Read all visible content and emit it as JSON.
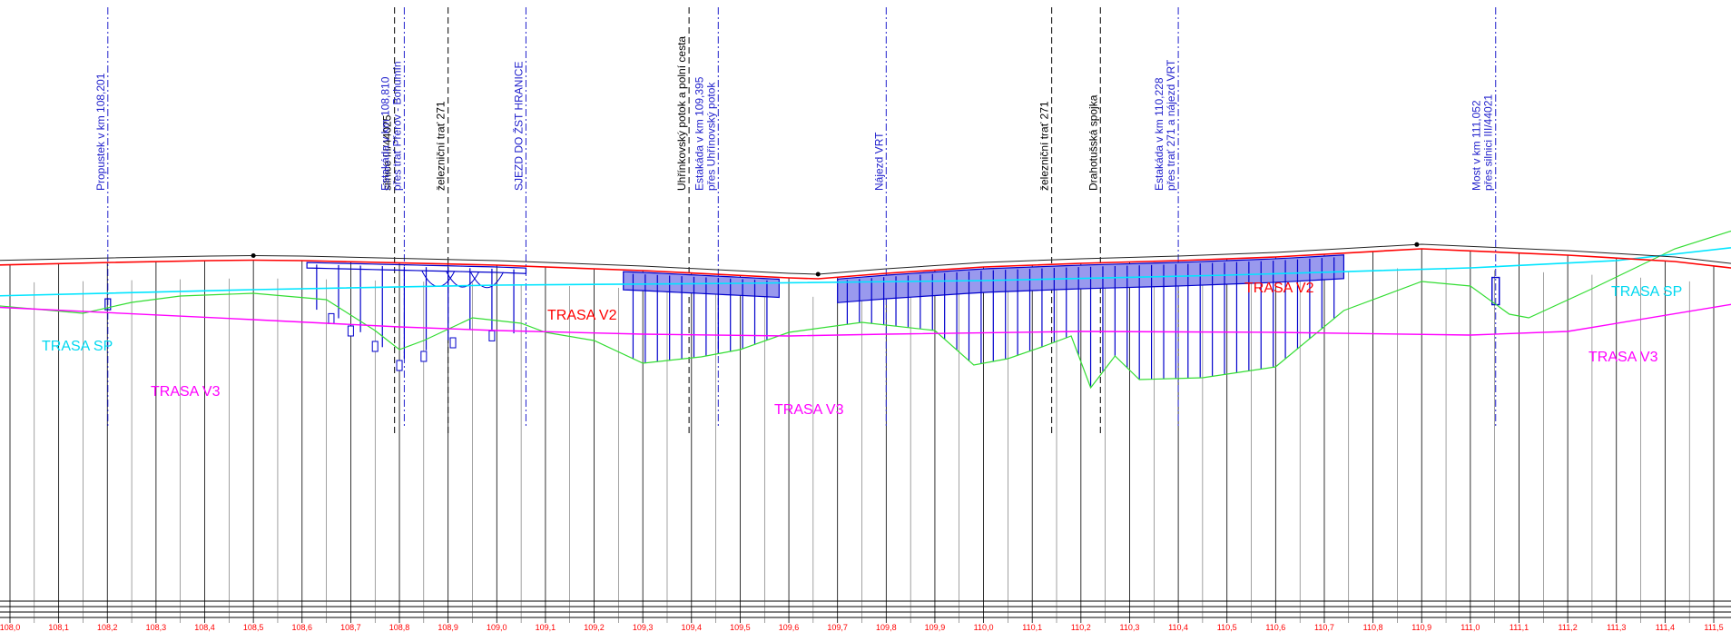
{
  "colors": {
    "V2": "#ff0000",
    "SP": "#00e5ff",
    "V3": "#ff00ff",
    "terrain": "#33dd33",
    "structure": "#0000cc",
    "structure_fill": "#9999ee",
    "crossing_black": "#000000",
    "crossing_blue": "#2222cc",
    "grid": "#000000",
    "km_labels": "#ff0000"
  },
  "routes": [
    {
      "id": "V2",
      "label": "TRASA V2"
    },
    {
      "id": "V2b",
      "label": "TRASA V2"
    },
    {
      "id": "SP",
      "label": "TRASA SP"
    },
    {
      "id": "SPb",
      "label": "TRASA SP"
    },
    {
      "id": "V3",
      "label": "TRASA V3"
    },
    {
      "id": "V3b",
      "label": "TRASA V3"
    },
    {
      "id": "V3c",
      "label": "TRASA V3"
    }
  ],
  "crossings": [
    {
      "km": 108.201,
      "style": "blue",
      "lines": [
        "Propustek v km 108,201"
      ]
    },
    {
      "km": 108.79,
      "style": "black",
      "lines": [
        "silnice III/44025"
      ]
    },
    {
      "km": 108.81,
      "style": "blue",
      "lines": [
        "Estakáda v km 108,810",
        "přes trať Přerov - Bohumín"
      ]
    },
    {
      "km": 108.9,
      "style": "black",
      "lines": [
        "železniční trať  271"
      ]
    },
    {
      "km": 109.06,
      "style": "blue",
      "lines": [
        "SJEZD DO ŽST HRANICE"
      ]
    },
    {
      "km": 109.395,
      "style": "black",
      "lines": [
        "Uhřínkovský potok a polní cesta"
      ]
    },
    {
      "km": 109.455,
      "style": "blue",
      "lines": [
        "Estakáda v km 109,395",
        "přes Uhřínovský potok"
      ]
    },
    {
      "km": 109.8,
      "style": "blue",
      "lines": [
        "Nájezd VRT"
      ]
    },
    {
      "km": 110.14,
      "style": "black",
      "lines": [
        "železniční trať  271"
      ]
    },
    {
      "km": 110.24,
      "style": "black",
      "lines": [
        "Drahotušská spojka"
      ]
    },
    {
      "km": 110.4,
      "style": "blue",
      "lines": [
        "Estakáda v km 110,228",
        "přes trať 271 a nájezd VRT"
      ]
    },
    {
      "km": 111.052,
      "style": "blue",
      "lines": [
        "Most v km 111,052",
        "přes silnici III/44021"
      ]
    }
  ],
  "km_ticks": [
    "108,0",
    "108,1",
    "108,2",
    "108,3",
    "108,4",
    "108,5",
    "108,6",
    "108,7",
    "108,8",
    "108,9",
    "109,0",
    "109,1",
    "109,2",
    "109,3",
    "109,4",
    "109,5",
    "109,6",
    "109,7",
    "109,8",
    "109,9",
    "110,0",
    "110,1",
    "110,2",
    "110,3",
    "110,4",
    "110,5",
    "110,6",
    "110,7",
    "110,8",
    "110,9",
    "111,0",
    "111,1",
    "111,2",
    "111,3",
    "111,4",
    "111,5"
  ],
  "profiles": {
    "V2": [
      [
        107.96,
        292
      ],
      [
        108.21,
        289
      ],
      [
        108.41,
        287
      ],
      [
        108.5,
        286.5
      ],
      [
        108.6,
        287
      ],
      [
        109.0,
        292
      ],
      [
        109.3,
        298
      ],
      [
        109.6,
        306
      ],
      [
        109.66,
        307
      ],
      [
        109.8,
        301
      ],
      [
        110.0,
        294
      ],
      [
        110.2,
        290
      ],
      [
        110.4,
        287
      ],
      [
        110.6,
        283
      ],
      [
        110.9,
        274
      ],
      [
        111.2,
        281
      ],
      [
        111.42,
        288
      ],
      [
        111.55,
        296
      ]
    ],
    "SP": [
      [
        107.96,
        326
      ],
      [
        108.5,
        319
      ],
      [
        109.0,
        314
      ],
      [
        109.5,
        312
      ],
      [
        110.0,
        309
      ],
      [
        110.5,
        303
      ],
      [
        111.0,
        295
      ],
      [
        111.3,
        287
      ],
      [
        111.55,
        272
      ]
    ],
    "V3": [
      [
        107.96,
        338
      ],
      [
        108.5,
        352
      ],
      [
        108.8,
        360
      ],
      [
        109.0,
        364
      ],
      [
        109.3,
        368
      ],
      [
        109.6,
        370
      ],
      [
        109.8,
        368
      ],
      [
        110.2,
        365
      ],
      [
        110.6,
        366
      ],
      [
        111.0,
        369
      ],
      [
        111.2,
        365
      ],
      [
        111.55,
        334
      ]
    ],
    "terrain": [
      [
        107.96,
        336
      ],
      [
        108.15,
        345
      ],
      [
        108.25,
        333
      ],
      [
        108.35,
        326
      ],
      [
        108.5,
        323
      ],
      [
        108.65,
        330
      ],
      [
        108.75,
        364
      ],
      [
        108.8,
        385
      ],
      [
        108.85,
        375
      ],
      [
        108.95,
        350
      ],
      [
        109.05,
        356
      ],
      [
        109.1,
        366
      ],
      [
        109.2,
        375
      ],
      [
        109.3,
        400
      ],
      [
        109.42,
        393
      ],
      [
        109.5,
        385
      ],
      [
        109.6,
        366
      ],
      [
        109.75,
        355
      ],
      [
        109.9,
        364
      ],
      [
        109.98,
        402
      ],
      [
        110.05,
        395
      ],
      [
        110.12,
        382
      ],
      [
        110.18,
        370
      ],
      [
        110.22,
        427
      ],
      [
        110.27,
        392
      ],
      [
        110.32,
        418
      ],
      [
        110.45,
        416
      ],
      [
        110.6,
        404
      ],
      [
        110.74,
        342
      ],
      [
        110.9,
        310
      ],
      [
        111.0,
        315
      ],
      [
        111.08,
        346
      ],
      [
        111.12,
        350
      ],
      [
        111.25,
        318
      ],
      [
        111.42,
        274
      ],
      [
        111.55,
        252
      ]
    ]
  }
}
